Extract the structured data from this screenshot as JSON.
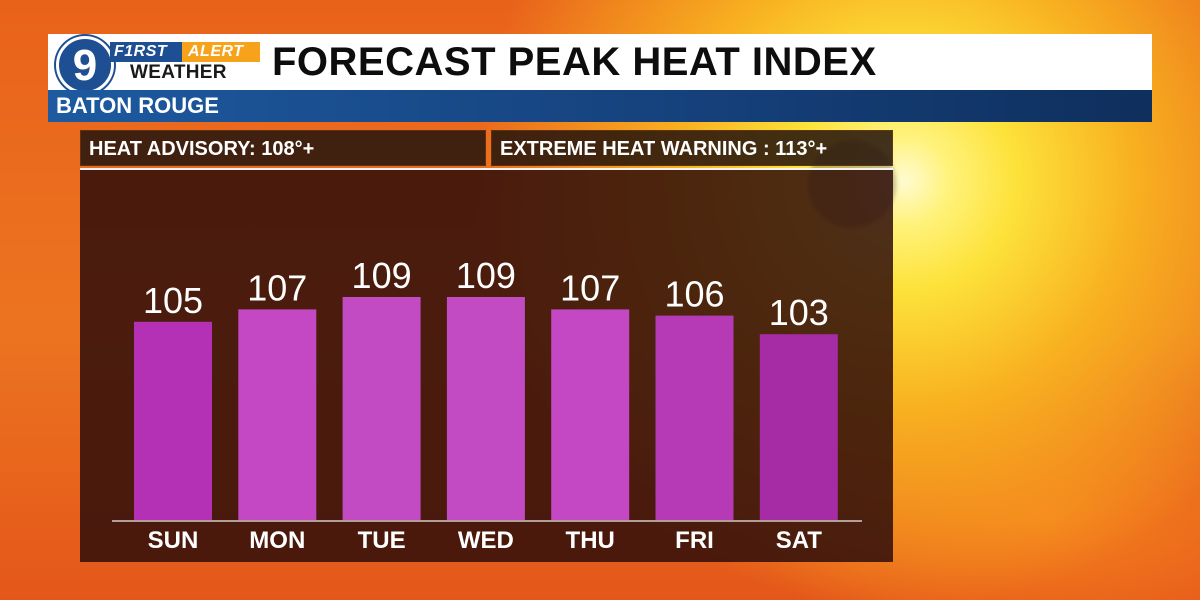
{
  "header": {
    "logo_number": "9",
    "logo_first": "F1RST",
    "logo_alert": "ALERT",
    "logo_weather": "WEATHER",
    "title": "FORECAST PEAK HEAT INDEX",
    "location": "BATON ROUGE"
  },
  "info": {
    "advisory": "HEAT ADVISORY: 108°+",
    "warning": "EXTREME HEAT WARNING : 113°+"
  },
  "colors": {
    "header_blue": "#1d4f92",
    "accent_orange": "#f7a21b"
  },
  "chart_data": {
    "type": "bar",
    "title": "FORECAST PEAK HEAT INDEX",
    "categories": [
      "SUN",
      "MON",
      "TUE",
      "WED",
      "THU",
      "FRI",
      "SAT"
    ],
    "values": [
      105,
      107,
      109,
      109,
      107,
      106,
      103
    ],
    "data_labels": [
      "105",
      "107",
      "109",
      "109",
      "107",
      "106",
      "103"
    ],
    "bar_colors": [
      "#b430b4",
      "#c447c4",
      "#c24bc4",
      "#c24bc4",
      "#c447c4",
      "#b63ab6",
      "#a52ca5"
    ],
    "xlabel": "",
    "ylabel": "",
    "grid": false,
    "legend": "none"
  }
}
